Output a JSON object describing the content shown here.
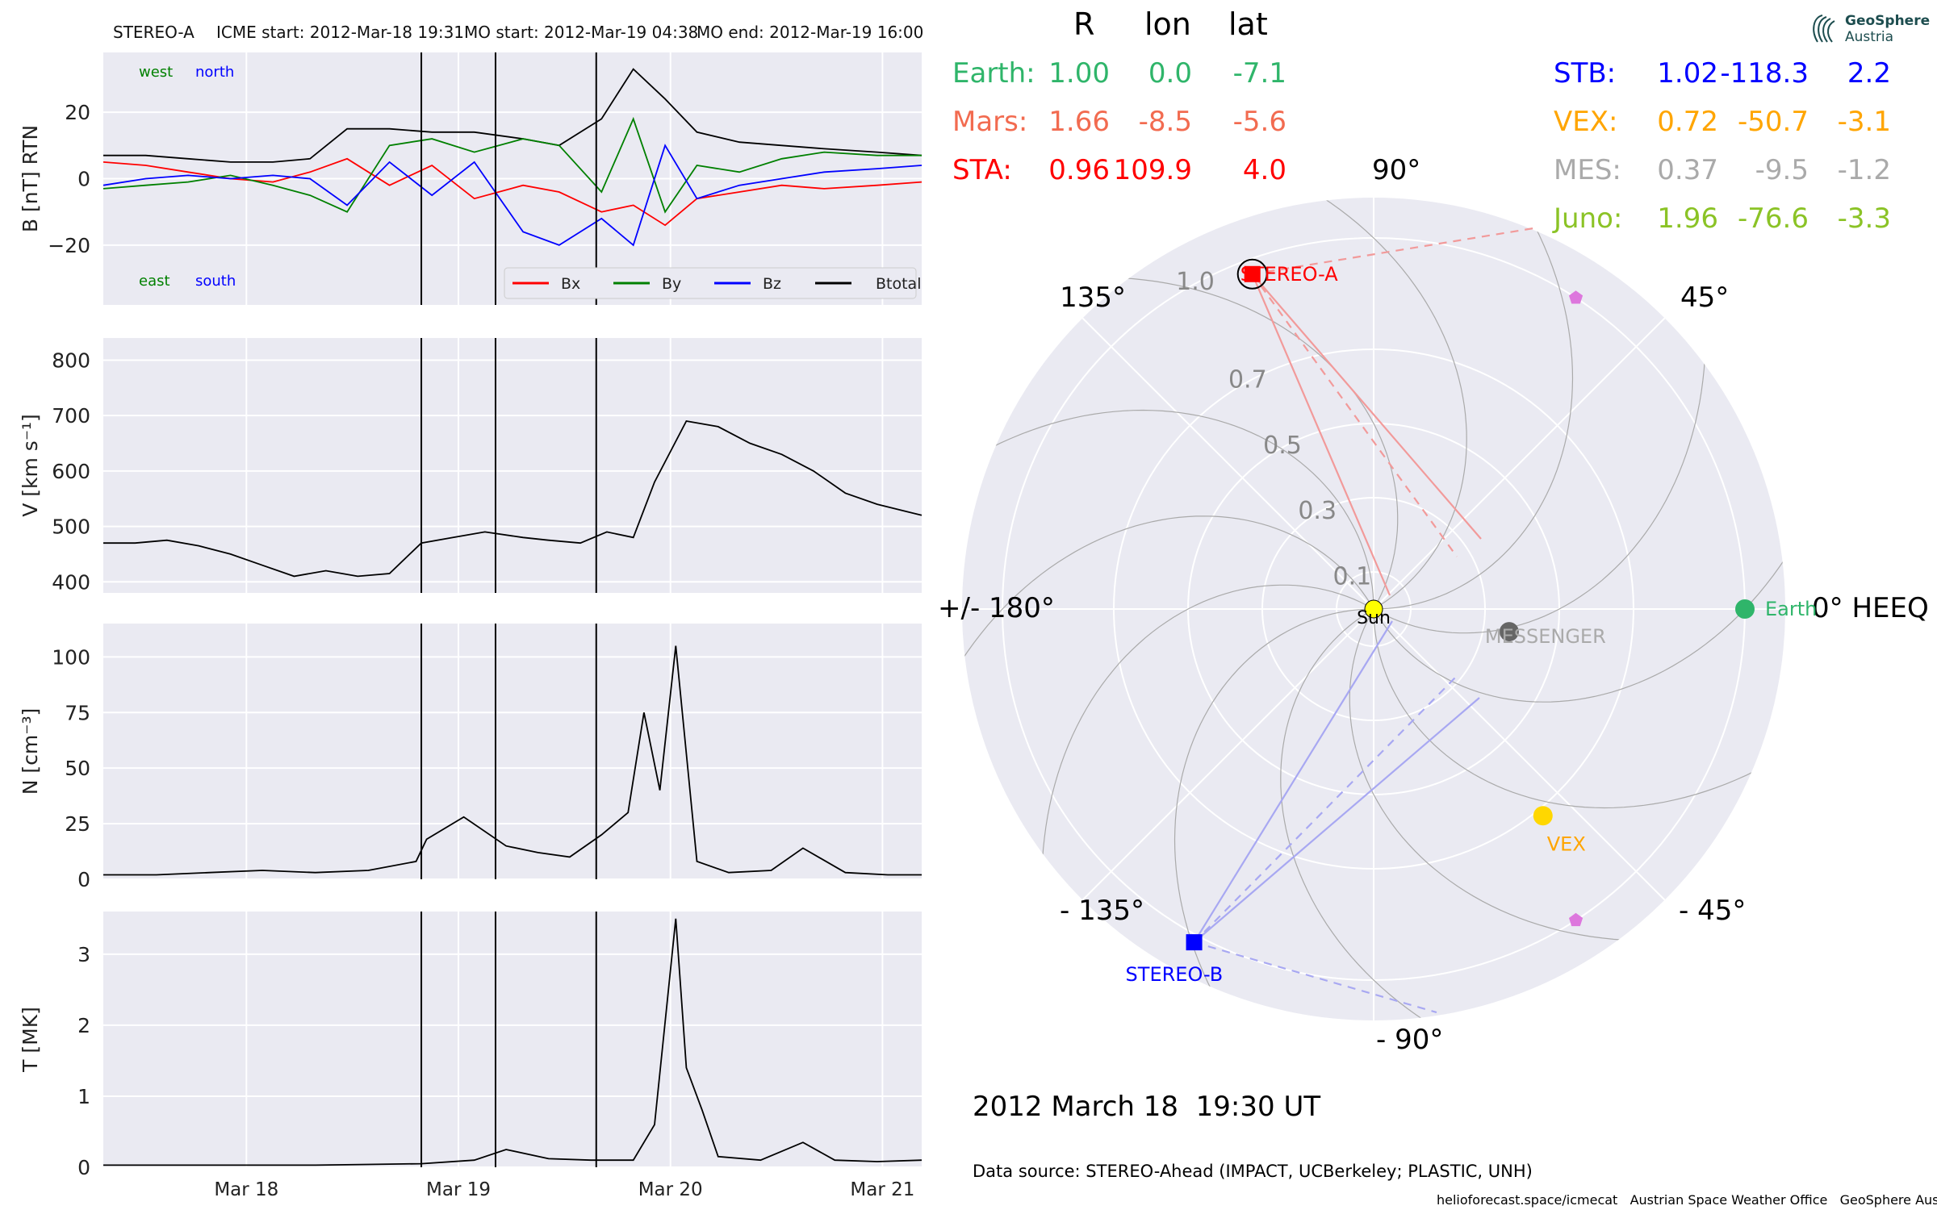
{
  "header": {
    "spacecraft": "STEREO-A",
    "icme_start": "ICME start: 2012-Mar-18 19:31",
    "mo_start": "MO start: 2012-Mar-19 04:38",
    "mo_end": "MO end: 2012-Mar-19 16:00"
  },
  "logo": {
    "line1": "GeoSphere",
    "line2": "Austria"
  },
  "position_table": {
    "headers": [
      "R",
      "lon",
      "lat"
    ],
    "left": [
      {
        "name": "Earth:",
        "R": "1.00",
        "lon": "0.0",
        "lat": "-7.1",
        "color": "#2fb56a"
      },
      {
        "name": "Mars:",
        "R": "1.66",
        "lon": "-8.5",
        "lat": "-5.6",
        "color": "#f26b50"
      },
      {
        "name": "STA:",
        "R": "0.96",
        "lon": "109.9",
        "lat": "4.0",
        "color": "#ff0000"
      }
    ],
    "right": [
      {
        "name": "STB:",
        "R": "1.02",
        "lon": "-118.3",
        "lat": "2.2",
        "color": "#0000ff"
      },
      {
        "name": "VEX:",
        "R": "0.72",
        "lon": "-50.7",
        "lat": "-3.1",
        "color": "#ffa500"
      },
      {
        "name": "MES:",
        "R": "0.37",
        "lon": "-9.5",
        "lat": "-1.2",
        "color": "#aaaaaa"
      },
      {
        "name": "Juno:",
        "R": "1.96",
        "lon": "-76.6",
        "lat": "-3.3",
        "color": "#8bc326"
      }
    ]
  },
  "polar": {
    "angle_labels": {
      "a0": "0° HEEQ",
      "a45": "45°",
      "a90": "90°",
      "a135": "135°",
      "a180": "+/- 180°",
      "am135": "- 135°",
      "am90": "- 90°",
      "am45": "- 45°"
    },
    "radial_ticks": [
      "0.1",
      "0.3",
      "0.5",
      "0.7",
      "1.0"
    ],
    "bodies": [
      {
        "label": "Sun",
        "r": 0.0,
        "lon": 0.0,
        "color": "#ffff00",
        "shape": "circle"
      },
      {
        "label": "Earth",
        "r": 1.0,
        "lon": 0.0,
        "color": "#2fb56a",
        "shape": "circle"
      },
      {
        "label": "MESSENGER",
        "r": 0.37,
        "lon": -9.5,
        "color": "#666666",
        "shape": "circle"
      },
      {
        "label": "VEX",
        "r": 0.72,
        "lon": -50.7,
        "color": "#ffd700",
        "shape": "circle"
      },
      {
        "label": "STEREO-A",
        "r": 0.96,
        "lon": 109.9,
        "color": "#ff0000",
        "shape": "square"
      },
      {
        "label": "STEREO-B",
        "r": 1.02,
        "lon": -118.3,
        "color": "#0000ff",
        "shape": "square"
      },
      {
        "label": "",
        "r": 1.0,
        "lon": 57.0,
        "color": "#dd77dd",
        "shape": "pentagon"
      },
      {
        "label": "",
        "r": 1.0,
        "lon": -57.0,
        "color": "#dd77dd",
        "shape": "pentagon"
      }
    ]
  },
  "date_label": "2012 March 18  19:30 UT",
  "data_source": "Data source: STEREO-Ahead (IMPACT, UCBerkeley; PLASTIC, UNH)",
  "footer": "helioforecast.space/icmecat   Austrian Space Weather Office   GeoSphere Austria",
  "chart_data": [
    {
      "type": "line",
      "ylabel": "B [nT] RTN",
      "ylim": [
        -38,
        38
      ],
      "yticks": [
        "20",
        "0",
        "−20"
      ],
      "labels_top": [
        "west",
        "north"
      ],
      "labels_bottom": [
        "east",
        "south"
      ],
      "legend": [
        "Bx",
        "By",
        "Bz",
        "Btotal"
      ],
      "series": [
        {
          "name": "Btotal",
          "color": "#000000",
          "x": [
            0,
            0.4,
            0.8,
            1.2,
            1.6,
            1.95,
            2.3,
            2.7,
            3.1,
            3.5,
            3.96,
            4.3,
            4.7,
            5.0,
            5.3,
            5.6,
            6.0,
            6.4,
            6.8,
            7.3,
            7.72
          ],
          "y": [
            7,
            7,
            6,
            5,
            5,
            6,
            15,
            15,
            14,
            14,
            12,
            10,
            18,
            33,
            24,
            14,
            11,
            10,
            9,
            8,
            7
          ]
        },
        {
          "name": "Bx",
          "color": "#ff0000",
          "x": [
            0,
            0.4,
            0.8,
            1.2,
            1.6,
            1.95,
            2.3,
            2.7,
            3.1,
            3.5,
            3.96,
            4.3,
            4.7,
            5.0,
            5.3,
            5.6,
            6.0,
            6.4,
            6.8,
            7.3,
            7.72
          ],
          "y": [
            5,
            4,
            2,
            0,
            -1,
            2,
            6,
            -2,
            4,
            -6,
            -2,
            -4,
            -10,
            -8,
            -14,
            -6,
            -4,
            -2,
            -3,
            -2,
            -1
          ]
        },
        {
          "name": "By",
          "color": "#008000",
          "x": [
            0,
            0.4,
            0.8,
            1.2,
            1.6,
            1.95,
            2.3,
            2.7,
            3.1,
            3.5,
            3.96,
            4.3,
            4.7,
            5.0,
            5.3,
            5.6,
            6.0,
            6.4,
            6.8,
            7.3,
            7.72
          ],
          "y": [
            -3,
            -2,
            -1,
            1,
            -2,
            -5,
            -10,
            10,
            12,
            8,
            12,
            10,
            -4,
            18,
            -10,
            4,
            2,
            6,
            8,
            7,
            7
          ]
        },
        {
          "name": "Bz",
          "color": "#0000ff",
          "x": [
            0,
            0.4,
            0.8,
            1.2,
            1.6,
            1.95,
            2.3,
            2.7,
            3.1,
            3.5,
            3.96,
            4.3,
            4.7,
            5.0,
            5.3,
            5.6,
            6.0,
            6.4,
            6.8,
            7.3,
            7.72
          ],
          "y": [
            -2,
            0,
            1,
            0,
            1,
            0,
            -8,
            5,
            -5,
            5,
            -16,
            -20,
            -12,
            -20,
            10,
            -6,
            -2,
            0,
            2,
            3,
            4
          ]
        }
      ]
    },
    {
      "type": "line",
      "ylabel": "V [km s⁻¹]",
      "ylim": [
        380,
        840
      ],
      "yticks": [
        "800",
        "700",
        "600",
        "500",
        "400"
      ],
      "series": [
        {
          "name": "V",
          "color": "#000000",
          "x": [
            0,
            0.3,
            0.6,
            0.9,
            1.2,
            1.5,
            1.8,
            2.1,
            2.4,
            2.7,
            3.0,
            3.3,
            3.6,
            3.96,
            4.2,
            4.5,
            4.75,
            5.0,
            5.2,
            5.5,
            5.8,
            6.1,
            6.4,
            6.7,
            7.0,
            7.3,
            7.72
          ],
          "y": [
            470,
            470,
            475,
            465,
            450,
            430,
            410,
            420,
            410,
            415,
            470,
            480,
            490,
            480,
            475,
            470,
            490,
            480,
            580,
            690,
            680,
            650,
            630,
            600,
            560,
            540,
            520
          ]
        }
      ]
    },
    {
      "type": "line",
      "ylabel": "N [cm⁻³]",
      "ylim": [
        0,
        115
      ],
      "yticks": [
        "100",
        "75",
        "50",
        "25",
        "0"
      ],
      "series": [
        {
          "name": "N",
          "color": "#000000",
          "x": [
            0,
            0.5,
            1.0,
            1.5,
            2.0,
            2.5,
            2.95,
            3.05,
            3.4,
            3.8,
            4.1,
            4.4,
            4.7,
            4.95,
            5.1,
            5.25,
            5.4,
            5.6,
            5.9,
            6.3,
            6.6,
            7.0,
            7.4,
            7.72
          ],
          "y": [
            2,
            2,
            3,
            4,
            3,
            4,
            8,
            18,
            28,
            15,
            12,
            10,
            20,
            30,
            75,
            40,
            105,
            8,
            3,
            4,
            14,
            3,
            2,
            2
          ]
        }
      ]
    },
    {
      "type": "line",
      "ylabel": "T [MK]",
      "ylim": [
        0,
        3.6
      ],
      "yticks": [
        "3",
        "2",
        "1",
        "0"
      ],
      "xticks": [
        "Mar 18",
        "Mar 19",
        "Mar 20",
        "Mar 21"
      ],
      "series": [
        {
          "name": "T",
          "color": "#000000",
          "x": [
            0,
            0.5,
            1.0,
            1.5,
            2.0,
            2.5,
            3.0,
            3.5,
            3.8,
            4.2,
            4.6,
            5.0,
            5.2,
            5.4,
            5.5,
            5.65,
            5.8,
            6.2,
            6.6,
            6.9,
            7.3,
            7.72
          ],
          "y": [
            0.03,
            0.03,
            0.03,
            0.03,
            0.03,
            0.04,
            0.05,
            0.1,
            0.25,
            0.12,
            0.1,
            0.1,
            0.6,
            3.5,
            1.4,
            0.8,
            0.15,
            0.1,
            0.35,
            0.1,
            0.08,
            0.1
          ]
        }
      ]
    }
  ]
}
